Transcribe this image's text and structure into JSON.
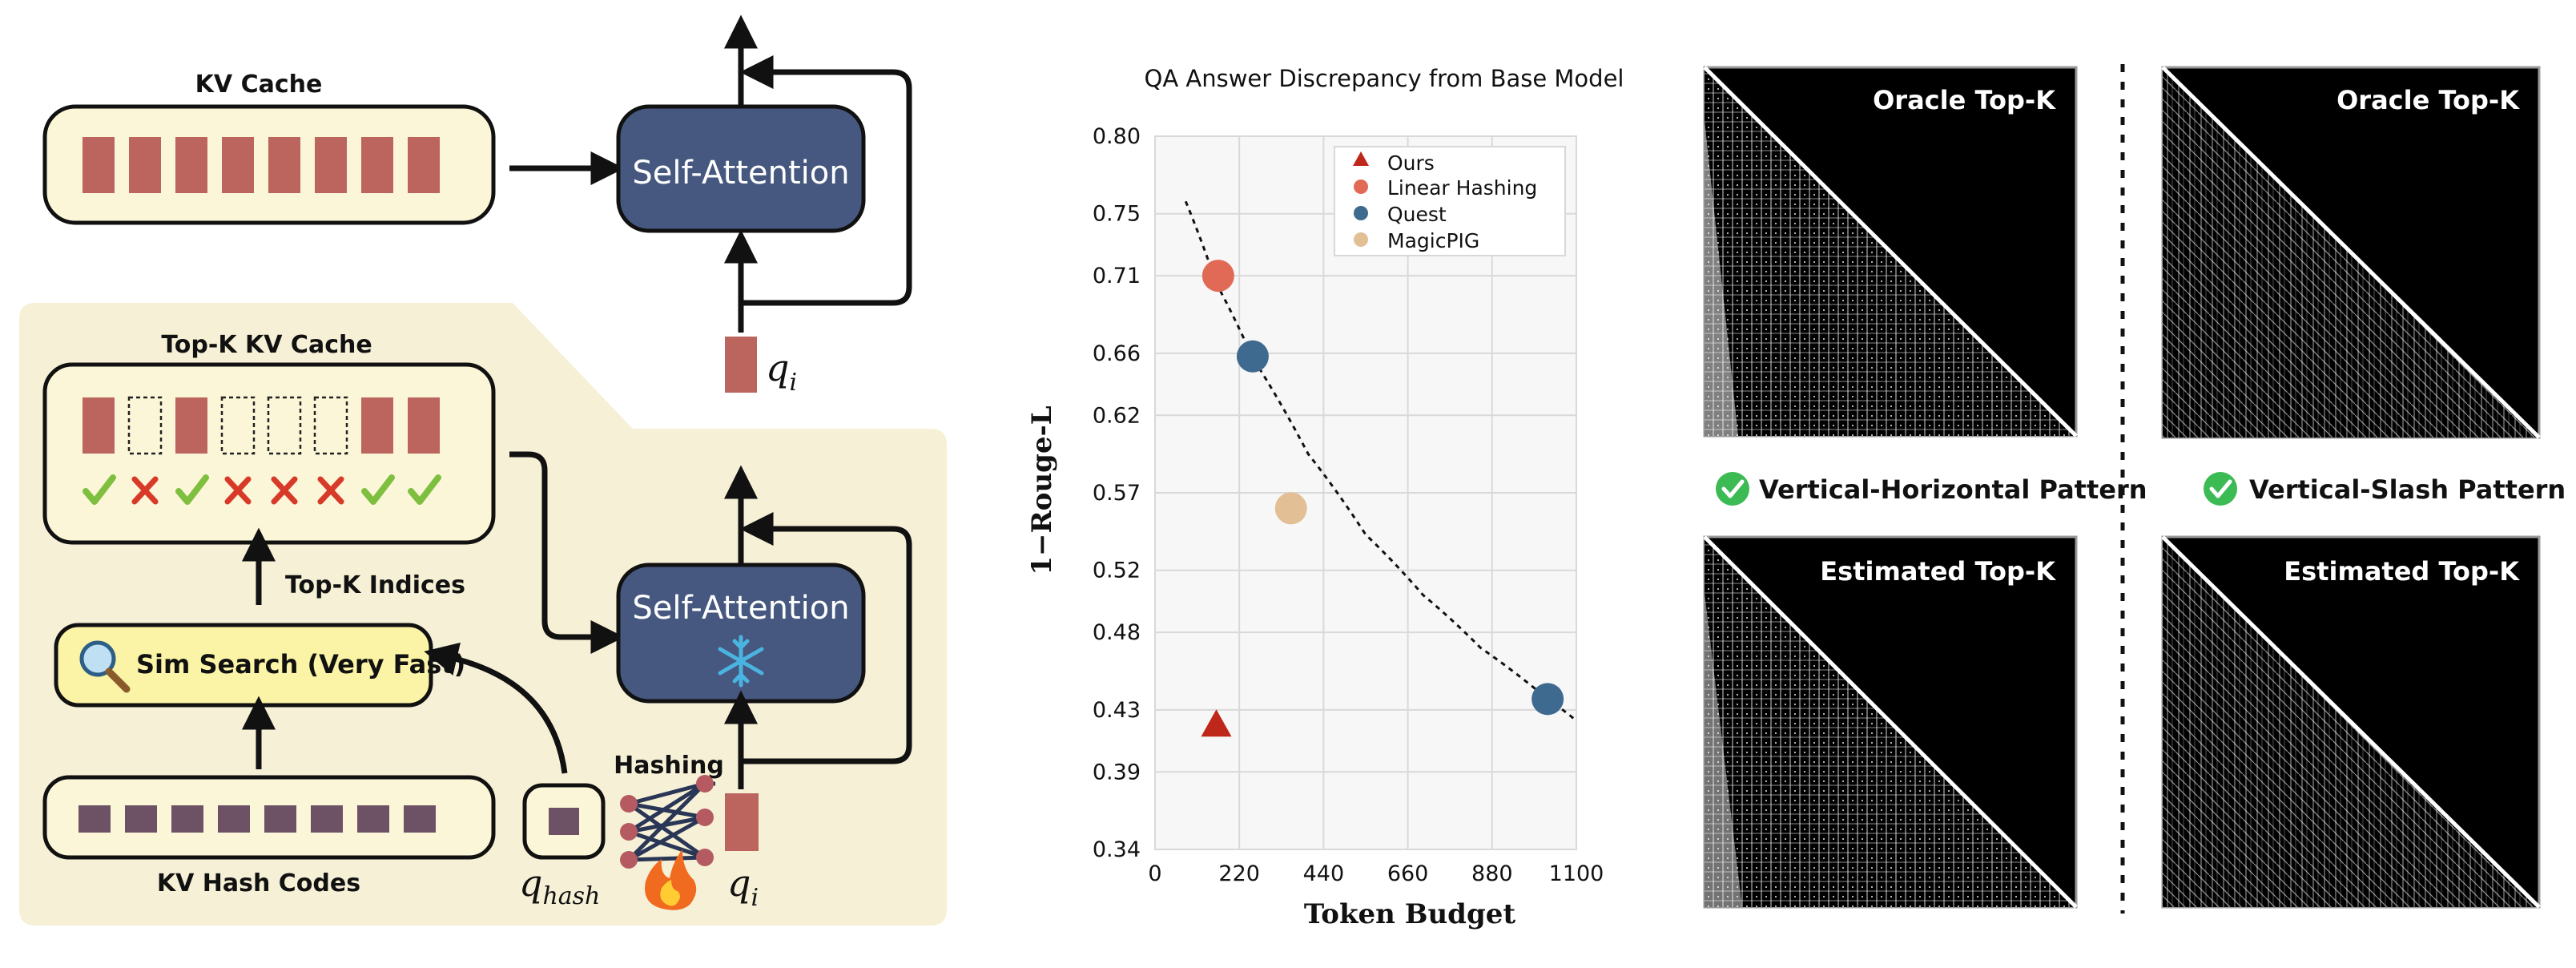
{
  "colors": {
    "cream": "#fbf6d8",
    "panel_bg": "#f6f0d6",
    "attn_box": "#46587f",
    "cache_cell": "#bc655f",
    "hash_cell": "#6d5266",
    "check": "#7fbf3f",
    "cross": "#d83a2a",
    "snowflake": "#4ab3e0",
    "ours": "#c0271b",
    "linear_hashing": "#e06a55",
    "quest": "#3f6a8f",
    "magicpig": "#e3bf96"
  },
  "diagram": {
    "top": {
      "kv_cache_label": "KV Cache",
      "self_attention_label": "Self-Attention",
      "q_label": "q",
      "q_sub": "i"
    },
    "bottom": {
      "topk_cache_label": "Top-K KV Cache",
      "topk_indices_label": "Top-K Indices",
      "sim_search_label": "Sim Search (Very Fast)",
      "kv_hash_codes_label": "KV Hash Codes",
      "self_attention_label": "Self-Attention",
      "hashing_label": "Hashing",
      "q_hash_label": "q",
      "q_hash_sub": "hash",
      "q_label": "q",
      "q_sub": "i",
      "selection": [
        true,
        false,
        true,
        false,
        false,
        false,
        true,
        true
      ]
    }
  },
  "chart_data": {
    "type": "scatter",
    "title": "QA Answer Discrepancy from Base Model",
    "xlabel": "Token Budget",
    "ylabel": "1−Rouge-L",
    "xlim": [
      0,
      1100
    ],
    "ylim": [
      0.34,
      0.8
    ],
    "xticks": [
      "0",
      "220",
      "440",
      "660",
      "880",
      "1100"
    ],
    "yticks": [
      "0.80",
      "0.75",
      "0.71",
      "0.66",
      "0.62",
      "0.57",
      "0.52",
      "0.48",
      "0.43",
      "0.39",
      "0.34"
    ],
    "grid": true,
    "legend_position": "top-right",
    "series": [
      {
        "name": "Ours",
        "marker": "triangle",
        "points": [
          {
            "x": 160,
            "y": 0.42
          }
        ]
      },
      {
        "name": "Linear Hashing",
        "marker": "circle",
        "points": [
          {
            "x": 165,
            "y": 0.71
          }
        ]
      },
      {
        "name": "Quest",
        "marker": "circle",
        "points": [
          {
            "x": 255,
            "y": 0.658
          },
          {
            "x": 1025,
            "y": 0.437
          }
        ]
      },
      {
        "name": "MagicPIG",
        "marker": "circle",
        "points": [
          {
            "x": 355,
            "y": 0.56
          }
        ]
      }
    ],
    "trend_curve": [
      {
        "x": 80,
        "y": 0.758
      },
      {
        "x": 160,
        "y": 0.705
      },
      {
        "x": 255,
        "y": 0.657
      },
      {
        "x": 400,
        "y": 0.595
      },
      {
        "x": 550,
        "y": 0.543
      },
      {
        "x": 700,
        "y": 0.504
      },
      {
        "x": 850,
        "y": 0.47
      },
      {
        "x": 1025,
        "y": 0.437
      },
      {
        "x": 1100,
        "y": 0.423
      }
    ]
  },
  "heatmaps": {
    "left_column": {
      "top_label": "Oracle Top-K",
      "bottom_label": "Estimated Top-K",
      "pattern_label": "Vertical-Horizontal Pattern"
    },
    "right_column": {
      "top_label": "Oracle Top-K",
      "bottom_label": "Estimated Top-K",
      "pattern_label": "Vertical-Slash Pattern"
    }
  }
}
